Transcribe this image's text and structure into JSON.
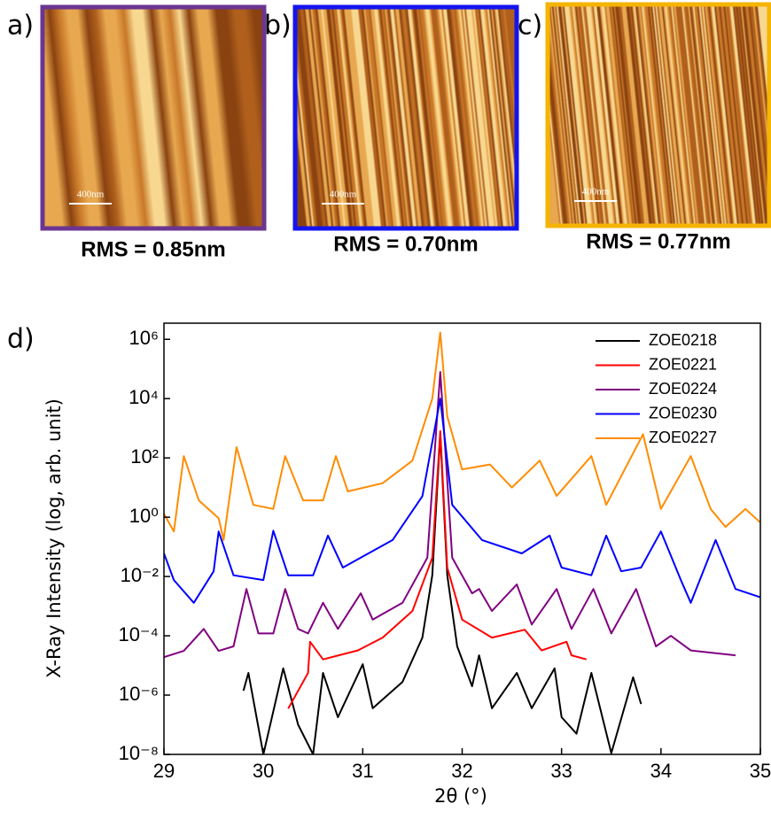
{
  "panels": [
    {
      "label": "a)",
      "scale_bar": "400nm",
      "caption": "RMS = 0.85nm",
      "border": "#6b3591"
    },
    {
      "label": "b)",
      "scale_bar": "400nm",
      "caption": "RMS = 0.70nm",
      "border": "#1414f0"
    },
    {
      "label": "c)",
      "scale_bar": "400nm",
      "caption": "RMS = 0.77nm",
      "border": "#f5b400"
    }
  ],
  "chart_data": {
    "type": "line",
    "label": "d)",
    "xlabel": "2θ (°)",
    "ylabel": "X-Ray Intensity (log, arb. unit)",
    "yscale": "log",
    "xlim": [
      29,
      35
    ],
    "ylim": [
      1e-08,
      3500000.0
    ],
    "xticks": [
      29,
      30,
      31,
      32,
      33,
      34,
      35
    ],
    "yticks": [
      {
        "value": 1e-08,
        "label": "10⁻⁸"
      },
      {
        "value": 1e-06,
        "label": "10⁻⁶"
      },
      {
        "value": 0.0001,
        "label": "10⁻⁴"
      },
      {
        "value": 0.01,
        "label": "10⁻²"
      },
      {
        "value": 1,
        "label": "10⁰"
      },
      {
        "value": 100,
        "label": "10²"
      },
      {
        "value": 10000,
        "label": "10⁴"
      },
      {
        "value": 1000000,
        "label": "10⁶"
      }
    ],
    "legend": "upper right",
    "series": [
      {
        "name": "ZOE0218",
        "color": "#000000",
        "x": [
          29.8,
          29.85,
          30.0,
          30.2,
          30.35,
          30.5,
          30.6,
          30.75,
          31.0,
          31.1,
          31.4,
          31.6,
          31.7,
          31.78,
          31.85,
          31.95,
          32.1,
          32.17,
          32.3,
          32.55,
          32.7,
          32.93,
          33.0,
          33.15,
          33.3,
          33.5,
          33.72,
          33.8
        ],
        "values": [
          1.4e-06,
          5.6e-06,
          1e-08,
          8e-06,
          1e-07,
          1e-08,
          5.6e-06,
          1.8e-07,
          1.1e-05,
          3.6e-07,
          2.8e-06,
          8.7e-05,
          0.011,
          630,
          0.011,
          4.4e-05,
          2e-06,
          2.2e-05,
          3.6e-07,
          5.6e-06,
          3.6e-07,
          8e-06,
          1.8e-07,
          5e-08,
          5.6e-06,
          1.1e-08,
          4e-06,
          5e-07
        ]
      },
      {
        "name": "ZOE0221",
        "color": "#ff0000",
        "x": [
          30.25,
          30.45,
          30.47,
          30.6,
          30.95,
          31.2,
          31.5,
          31.7,
          31.78,
          31.85,
          32.0,
          32.3,
          32.63,
          32.8,
          33.05,
          33.1,
          33.25
        ],
        "values": [
          3.5e-07,
          5.6e-06,
          6.3e-05,
          1.6e-05,
          3.2e-05,
          8.7e-05,
          0.00069,
          0.043,
          800,
          0.02,
          0.00035,
          8.7e-05,
          0.00016,
          3.2e-05,
          6.3e-05,
          2.2e-05,
          1.6e-05
        ]
      },
      {
        "name": "ZOE0224",
        "color": "#800080",
        "x": [
          29.0,
          29.2,
          29.4,
          29.55,
          29.7,
          29.83,
          29.95,
          30.1,
          30.22,
          30.35,
          30.45,
          30.6,
          30.75,
          30.98,
          31.1,
          31.4,
          31.65,
          31.78,
          31.9,
          32.1,
          32.17,
          32.3,
          32.55,
          32.7,
          32.95,
          33.1,
          33.32,
          33.5,
          33.75,
          33.95,
          34.1,
          34.3,
          34.75
        ],
        "values": [
          1.9e-05,
          3.1e-05,
          0.00017,
          3.1e-05,
          4.4e-05,
          0.0038,
          0.00012,
          0.00012,
          0.0038,
          0.00017,
          0.00012,
          0.0013,
          0.00017,
          0.0027,
          0.00035,
          0.0013,
          0.043,
          79000,
          0.043,
          0.0027,
          0.0038,
          0.00069,
          0.0054,
          0.00024,
          0.0038,
          0.00017,
          0.0038,
          0.00012,
          0.0038,
          4.4e-05,
          0.0001,
          3.2e-05,
          2.2e-05
        ]
      },
      {
        "name": "ZOE0230",
        "color": "#0000ff",
        "x": [
          29.0,
          29.1,
          29.3,
          29.5,
          29.55,
          29.7,
          30.0,
          30.1,
          30.25,
          30.5,
          30.65,
          30.8,
          31.3,
          31.6,
          31.78,
          31.9,
          32.2,
          32.6,
          32.88,
          33.0,
          33.3,
          33.45,
          33.6,
          33.8,
          34.0,
          34.2,
          34.3,
          34.55,
          34.75,
          35.0
        ],
        "values": [
          0.06,
          0.0076,
          0.0013,
          0.015,
          0.33,
          0.011,
          0.0076,
          0.35,
          0.011,
          0.011,
          0.24,
          0.02,
          0.17,
          5.1,
          10000,
          2.6,
          0.17,
          0.06,
          0.24,
          0.02,
          0.011,
          0.24,
          0.015,
          0.02,
          0.33,
          0.0076,
          0.0013,
          0.17,
          0.0038,
          0.002
        ]
      },
      {
        "name": "ZOE0227",
        "color": "#ff8c00",
        "x": [
          29.0,
          29.1,
          29.2,
          29.35,
          29.55,
          29.6,
          29.73,
          29.9,
          30.1,
          30.22,
          30.4,
          30.6,
          30.73,
          30.85,
          31.2,
          31.5,
          31.7,
          31.78,
          31.85,
          32.0,
          32.28,
          32.5,
          32.78,
          32.95,
          33.3,
          33.45,
          33.82,
          34.0,
          34.3,
          34.5,
          34.65,
          34.85,
          35.0
        ],
        "values": [
          1.3,
          0.33,
          115,
          3.7,
          0.93,
          0.17,
          230,
          2.6,
          1.9,
          115,
          3.7,
          3.7,
          115,
          7.4,
          14,
          81,
          10000,
          1700000,
          2500,
          41,
          60,
          10,
          81,
          5.2,
          115,
          2.6,
          630,
          1.9,
          115,
          1.9,
          0.47,
          1.9,
          0.66
        ]
      }
    ]
  }
}
